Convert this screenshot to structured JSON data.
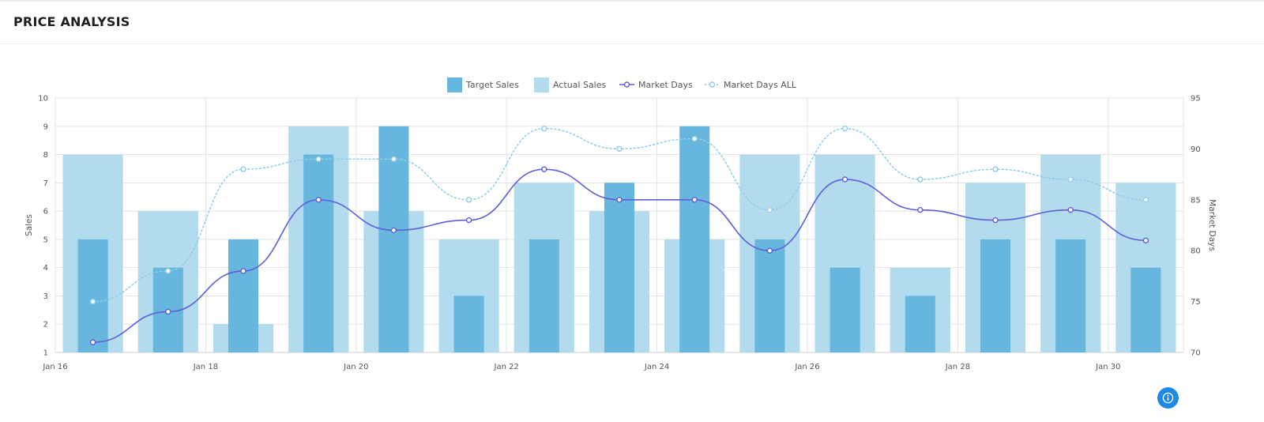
{
  "header": {
    "title": "PRICE ANALYSIS"
  },
  "info_button": {
    "icon": "info-icon"
  },
  "colors": {
    "target": "#67b6dd",
    "actual": "#b3dbee",
    "market_days": "#5e5fd6",
    "market_days_all": "#8fcde8",
    "grid": "#e3e3e3"
  },
  "chart_data": {
    "type": "bar",
    "legend": [
      "Target Sales",
      "Actual Sales",
      "Market Days",
      "Market Days ALL"
    ],
    "legend_position": "top",
    "grid": true,
    "categories": [
      "Jan 16.5",
      "Jan 17.5",
      "Jan 18.5",
      "Jan 19.5",
      "Jan 20.5",
      "Jan 21.5",
      "Jan 22.5",
      "Jan 23.5",
      "Jan 24.5",
      "Jan 25.5",
      "Jan 26.5",
      "Jan 27.5",
      "Jan 28.5",
      "Jan 29.5",
      "Jan 30.5"
    ],
    "x_ticks": [
      "Jan 16",
      "Jan 18",
      "Jan 20",
      "Jan 22",
      "Jan 24",
      "Jan 26",
      "Jan 28",
      "Jan 30"
    ],
    "y_left": {
      "label": "Sales",
      "min": 1,
      "max": 10,
      "ticks": [
        "1",
        "2",
        "3",
        "4",
        "5",
        "6",
        "7",
        "8",
        "9",
        "10"
      ]
    },
    "y_right": {
      "label": "Market Days",
      "min": 70,
      "max": 95,
      "ticks": [
        "70",
        "75",
        "80",
        "85",
        "90",
        "95"
      ]
    },
    "series": [
      {
        "name": "Actual Sales",
        "kind": "bar",
        "axis": "left",
        "values": [
          8,
          6,
          2,
          9,
          6,
          5,
          7,
          6,
          5,
          8,
          8,
          4,
          7,
          8,
          7
        ]
      },
      {
        "name": "Target Sales",
        "kind": "bar",
        "axis": "left",
        "values": [
          5,
          4,
          5,
          8,
          9,
          3,
          5,
          7,
          9,
          5,
          4,
          3,
          5,
          5,
          4
        ]
      },
      {
        "name": "Market Days",
        "kind": "line",
        "axis": "right",
        "values": [
          71,
          74,
          78,
          85,
          82,
          83,
          88,
          85,
          85,
          80,
          87,
          84,
          83,
          84,
          81
        ]
      },
      {
        "name": "Market Days ALL",
        "kind": "line-dotted",
        "axis": "right",
        "values": [
          75,
          78,
          88,
          89,
          89,
          85,
          92,
          90,
          91,
          84,
          92,
          87,
          88,
          87,
          85
        ]
      }
    ]
  }
}
